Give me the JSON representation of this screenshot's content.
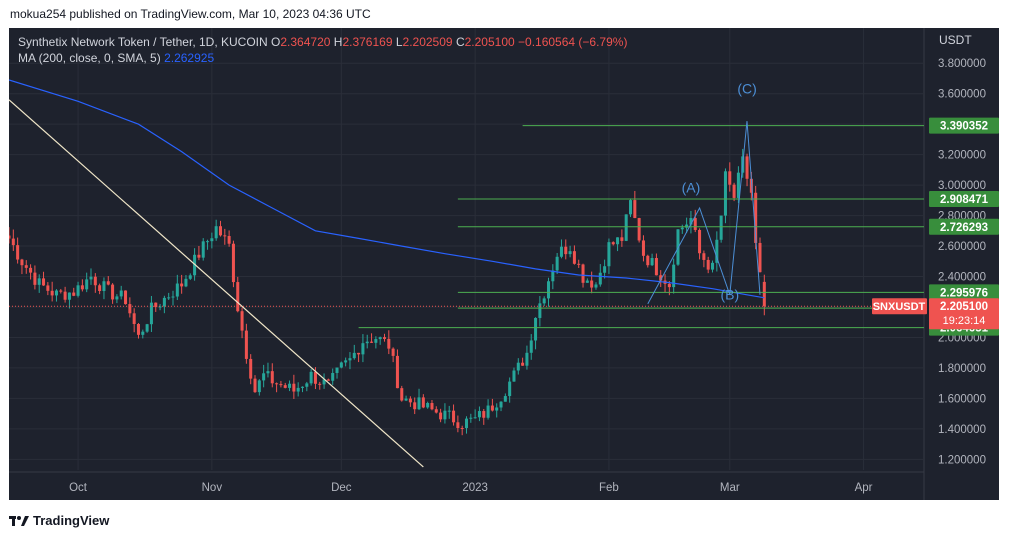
{
  "header": {
    "published": "mokua254 published on TradingView.com, Mar 10, 2023 04:36 UTC"
  },
  "legend": {
    "symbol": "Synthetix Network Token / Tether, 1D, KUCOIN",
    "open_label": "O",
    "open": "2.364720",
    "high_label": "H",
    "high": "2.376169",
    "low_label": "L",
    "low": "2.202509",
    "close_label": "C",
    "close": "2.205100",
    "change": "−0.160564 (−6.79%)",
    "ma_label": "MA (200, close, 0, SMA, 5)",
    "ma_value": "2.262925"
  },
  "axis": {
    "unit": "USDT"
  },
  "footer": {
    "brand": "TradingView"
  },
  "colors": {
    "background": "#1e222d",
    "grid": "#2a2e39",
    "up": "#26a69a",
    "down": "#ef5350",
    "ma": "#2962ff",
    "level": "#4caf50",
    "trendline": "#f0e6c8",
    "wave": "#4c8fd6",
    "text": "#b2b5be"
  },
  "chart_data": {
    "type": "candlestick",
    "symbol": "SNXUSDT",
    "ylim": [
      1.13,
      3.9
    ],
    "y_ticks": [
      1.2,
      1.4,
      1.6,
      1.8,
      2.0,
      2.2,
      2.4,
      2.6,
      2.8,
      3.0,
      3.2,
      3.4,
      3.6,
      3.8
    ],
    "y_tick_labels": [
      "1.200000",
      "1.400000",
      "1.600000",
      "1.800000",
      "2.000000",
      "2.200000",
      "2.400000",
      "2.600000",
      "2.800000",
      "3.000000",
      "3.200000",
      "3.400000",
      "3.600000",
      "3.800000"
    ],
    "x_ticks": [
      {
        "label": "Oct",
        "date": "2022-10-01"
      },
      {
        "label": "Nov",
        "date": "2022-11-01"
      },
      {
        "label": "Dec",
        "date": "2022-12-01"
      },
      {
        "label": "2023",
        "date": "2023-01-01"
      },
      {
        "label": "Feb",
        "date": "2023-02-01"
      },
      {
        "label": "Mar",
        "date": "2023-03-01"
      },
      {
        "label": "Apr",
        "date": "2023-04-01"
      }
    ],
    "x_range": [
      "2022-09-15",
      "2023-04-15"
    ],
    "anchors": [
      [
        "2022-09-15",
        2.65
      ],
      [
        "2022-09-18",
        2.5
      ],
      [
        "2022-09-22",
        2.35
      ],
      [
        "2022-09-26",
        2.28
      ],
      [
        "2022-09-30",
        2.3
      ],
      [
        "2022-10-04",
        2.4
      ],
      [
        "2022-10-08",
        2.3
      ],
      [
        "2022-10-12",
        2.25
      ],
      [
        "2022-10-15",
        2.0
      ],
      [
        "2022-10-18",
        2.18
      ],
      [
        "2022-10-22",
        2.28
      ],
      [
        "2022-10-25",
        2.35
      ],
      [
        "2022-10-29",
        2.55
      ],
      [
        "2022-11-02",
        2.72
      ],
      [
        "2022-11-05",
        2.6
      ],
      [
        "2022-11-07",
        2.2
      ],
      [
        "2022-11-09",
        1.9
      ],
      [
        "2022-11-11",
        1.65
      ],
      [
        "2022-11-13",
        1.75
      ],
      [
        "2022-11-16",
        1.7
      ],
      [
        "2022-11-20",
        1.65
      ],
      [
        "2022-11-24",
        1.75
      ],
      [
        "2022-11-28",
        1.68
      ],
      [
        "2022-12-01",
        1.8
      ],
      [
        "2022-12-03",
        1.85
      ],
      [
        "2022-12-06",
        1.98
      ],
      [
        "2022-12-09",
        2.0
      ],
      [
        "2022-12-12",
        1.95
      ],
      [
        "2022-12-15",
        1.6
      ],
      [
        "2022-12-18",
        1.57
      ],
      [
        "2022-12-22",
        1.52
      ],
      [
        "2022-12-26",
        1.48
      ],
      [
        "2022-12-29",
        1.44
      ],
      [
        "2023-01-01",
        1.46
      ],
      [
        "2023-01-04",
        1.52
      ],
      [
        "2023-01-07",
        1.62
      ],
      [
        "2023-01-10",
        1.75
      ],
      [
        "2023-01-13",
        1.9
      ],
      [
        "2023-01-15",
        2.15
      ],
      [
        "2023-01-17",
        2.3
      ],
      [
        "2023-01-20",
        2.55
      ],
      [
        "2023-01-23",
        2.6
      ],
      [
        "2023-01-26",
        2.4
      ],
      [
        "2023-01-29",
        2.35
      ],
      [
        "2023-02-01",
        2.6
      ],
      [
        "2023-02-04",
        2.65
      ],
      [
        "2023-02-06",
        2.88
      ],
      [
        "2023-02-09",
        2.55
      ],
      [
        "2023-02-12",
        2.45
      ],
      [
        "2023-02-15",
        2.35
      ],
      [
        "2023-02-17",
        2.7
      ],
      [
        "2023-02-20",
        2.78
      ],
      [
        "2023-02-22",
        2.55
      ],
      [
        "2023-02-25",
        2.45
      ],
      [
        "2023-02-27",
        2.8
      ],
      [
        "2023-02-28",
        3.05
      ],
      [
        "2023-03-02",
        2.92
      ],
      [
        "2023-03-04",
        3.15
      ],
      [
        "2023-03-06",
        2.95
      ],
      [
        "2023-03-07",
        2.6
      ],
      [
        "2023-03-08",
        2.4
      ],
      [
        "2023-03-09",
        2.2
      ]
    ],
    "moving_average": {
      "name": "MA (200, close, 0, SMA, 5)",
      "points": [
        [
          "2022-09-15",
          3.69
        ],
        [
          "2022-10-01",
          3.55
        ],
        [
          "2022-10-15",
          3.4
        ],
        [
          "2022-10-25",
          3.22
        ],
        [
          "2022-11-05",
          3.0
        ],
        [
          "2022-11-15",
          2.85
        ],
        [
          "2022-11-25",
          2.7
        ],
        [
          "2022-12-05",
          2.65
        ],
        [
          "2022-12-15",
          2.6
        ],
        [
          "2022-12-25",
          2.55
        ],
        [
          "2023-01-05",
          2.5
        ],
        [
          "2023-01-15",
          2.45
        ],
        [
          "2023-01-25",
          2.41
        ],
        [
          "2023-02-05",
          2.39
        ],
        [
          "2023-02-15",
          2.36
        ],
        [
          "2023-02-25",
          2.32
        ],
        [
          "2023-03-05",
          2.28
        ],
        [
          "2023-03-09",
          2.26
        ]
      ]
    },
    "horizontal_levels": [
      {
        "value": 3.390352,
        "label": "3.390352",
        "from": "2023-01-12"
      },
      {
        "value": 2.908471,
        "label": "2.908471",
        "from": "2022-12-28"
      },
      {
        "value": 2.726293,
        "label": "2.726293",
        "from": "2022-12-28"
      },
      {
        "value": 2.295976,
        "label": "2.295976",
        "from": "2022-12-28"
      },
      {
        "value": 2.192323,
        "label": "2.192323",
        "from": "2022-12-28"
      },
      {
        "value": 2.064651,
        "label": "2.064651",
        "from": "2022-12-05"
      }
    ],
    "current_price": {
      "symbol": "SNXUSDT",
      "value": 2.2051,
      "label": "2.205100",
      "countdown": "19:23:14"
    },
    "trendline": [
      [
        "2022-09-15",
        3.56
      ],
      [
        "2022-12-20",
        1.15
      ]
    ],
    "wave_path": [
      [
        "2023-02-10",
        2.22
      ],
      [
        "2023-02-22",
        2.85
      ],
      [
        "2023-03-01",
        2.28
      ],
      [
        "2023-03-05",
        3.42
      ],
      [
        "2023-03-08",
        2.28
      ]
    ],
    "wave_labels": [
      {
        "text": "(A)",
        "date": "2023-02-20",
        "value": 2.95
      },
      {
        "text": "(B)",
        "date": "2023-03-01",
        "value": 2.25
      },
      {
        "text": "(C)",
        "date": "2023-03-05",
        "value": 3.6
      }
    ]
  }
}
